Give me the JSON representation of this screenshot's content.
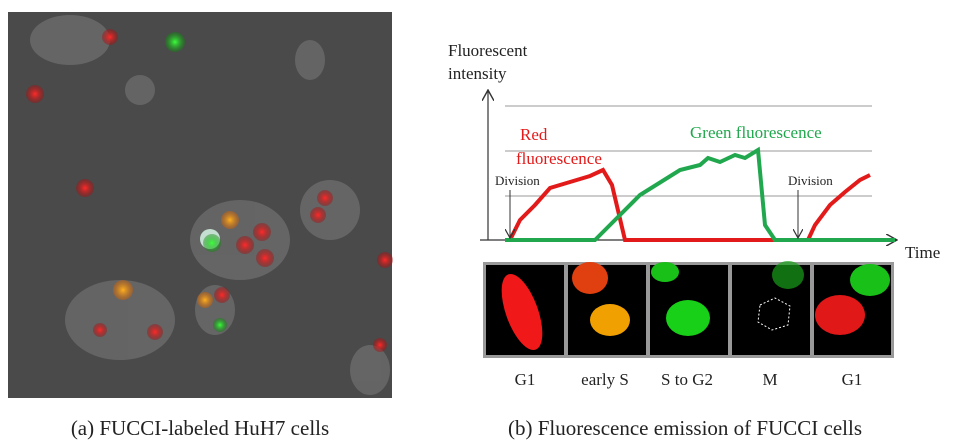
{
  "figure": {
    "panel_a": {
      "caption": "(a) FUCCI-labeled HuH7 cells"
    },
    "panel_b": {
      "caption": "(b) Fluorescence emission of FUCCI cells",
      "y_axis_label": [
        "Fluorescent",
        "intensity"
      ],
      "x_axis_label": "Time",
      "red_label": [
        "Red",
        "fluorescence"
      ],
      "green_label": "Green fluorescence",
      "division_labels": [
        "Division",
        "Division"
      ],
      "phases": [
        "G1",
        "early S",
        "S to G2",
        "M",
        "G1"
      ]
    }
  }
}
